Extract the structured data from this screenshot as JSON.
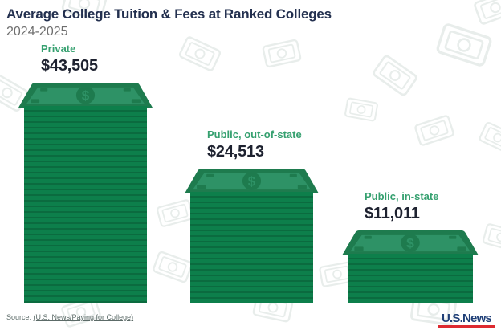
{
  "title": "Average College Tuition & Fees at Ranked Colleges",
  "subtitle": "2024-2025",
  "chart_data": {
    "type": "bar",
    "title": "Average College Tuition & Fees at Ranked Colleges",
    "subtitle": "2024-2025",
    "categories": [
      "Private",
      "Public, out-of-state",
      "Public, in-state"
    ],
    "values": [
      43505,
      24513,
      11011
    ],
    "value_labels": [
      "$43,505",
      "$24,513",
      "$11,011"
    ],
    "bar_style": "money-stack",
    "orientation": "vertical",
    "grid": false,
    "legend": false
  },
  "bill_symbol": "$",
  "source": {
    "prefix": "Source: ",
    "link": "(U.S. News/Paying for College)"
  },
  "logo": {
    "text": "U.S.News"
  },
  "colors": {
    "title": "#23304F",
    "subtitle": "#6E6E6E",
    "label_green": "#35A06F",
    "value": "#1E2230",
    "bill_light": "#2E9266",
    "bill_dark": "#1E7B4E",
    "stripe_light": "#0D7F4B",
    "stripe_dark": "#0B6B3F",
    "source": "#5C6B68",
    "logo_blue": "#1F3F77",
    "logo_red": "#DD2A30",
    "watermark": "#E5EBE8"
  }
}
